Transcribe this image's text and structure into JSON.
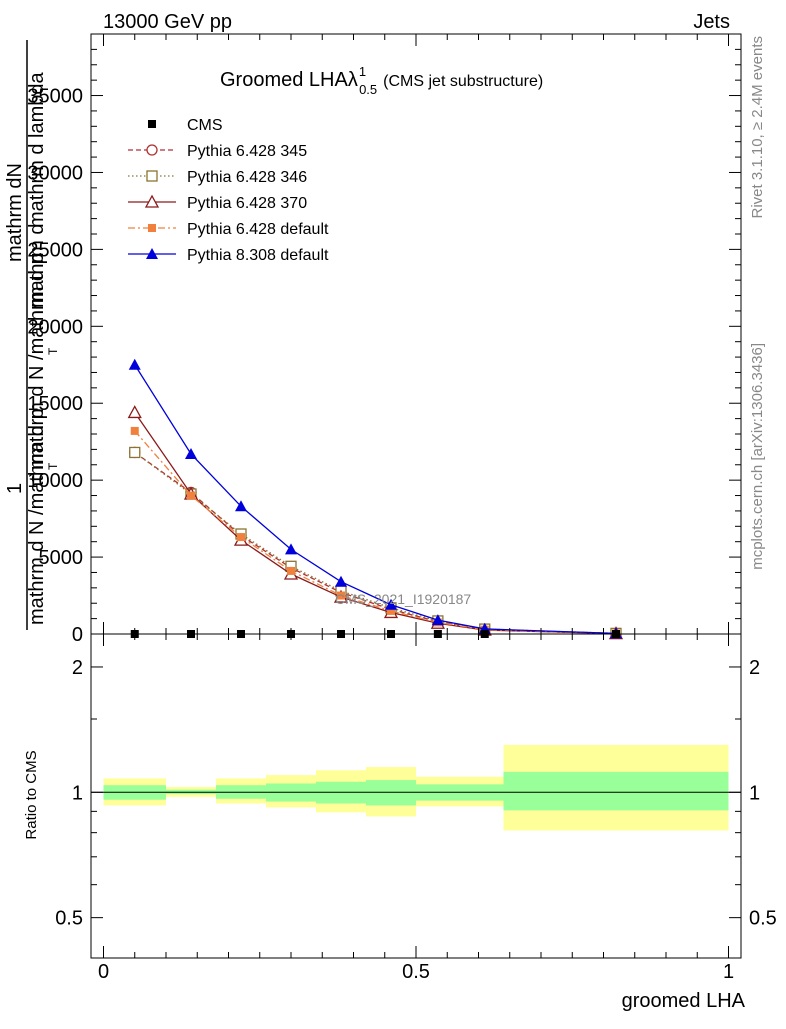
{
  "header": {
    "left": "13000 GeV pp",
    "right": "Jets"
  },
  "side": {
    "rivet": "Rivet 3.1.10, ≥ 2.4M events",
    "mcplots": "mcplots.cern.ch [arXiv:1306.3436]"
  },
  "chart_data": {
    "type": "line",
    "title": "Groomed LHAλ",
    "title_sup": "1",
    "title_sub": "0.5",
    "title_note": "(CMS jet substructure)",
    "analysis_label": "CMS_2021_I1920187",
    "main_panel": {
      "ylabel_parts": [
        "1",
        "mathrm d N /mathrm d p",
        "T",
        "mathrm d N /mathrm d p",
        "T",
        "mathrm dN",
        "mathrm d lambda",
        "mathrm d"
      ],
      "ylim": [
        0,
        39000
      ],
      "yticks": [
        0,
        5000,
        10000,
        15000,
        20000,
        25000,
        30000,
        35000
      ],
      "ytick_labels": [
        "0",
        "5000",
        "10000",
        "15000",
        "20000",
        "25000",
        "30000",
        "35000"
      ],
      "x": [
        0.05,
        0.14,
        0.22,
        0.3,
        0.38,
        0.46,
        0.535,
        0.61,
        0.82
      ],
      "series": [
        {
          "name": "CMS",
          "color": "#000000",
          "marker": "filled-square",
          "line": "none",
          "values": [
            0,
            0,
            0,
            0,
            0,
            0,
            0,
            0,
            0
          ]
        },
        {
          "name": "Pythia 6.428 345",
          "color": "#b03030",
          "marker": "open-circle",
          "line": "dashed",
          "values": [
            11800,
            9200,
            6400,
            4300,
            2700,
            1600,
            800,
            300,
            40
          ]
        },
        {
          "name": "Pythia 6.428 346",
          "color": "#8b7333",
          "marker": "open-square",
          "line": "dotted",
          "values": [
            11800,
            9100,
            6500,
            4400,
            2800,
            1700,
            850,
            320,
            40
          ]
        },
        {
          "name": "Pythia 6.428 370",
          "color": "#8b1a1a",
          "marker": "open-triangle",
          "line": "solid",
          "values": [
            14400,
            9100,
            6100,
            3900,
            2400,
            1400,
            700,
            250,
            30
          ]
        },
        {
          "name": "Pythia 6.428 default",
          "color": "#f0803c",
          "marker": "filled-square",
          "line": "dashdot",
          "values": [
            13200,
            9000,
            6300,
            4100,
            2500,
            1500,
            750,
            280,
            35
          ]
        },
        {
          "name": "Pythia 8.308 default",
          "color": "#0000dd",
          "marker": "filled-triangle",
          "line": "solid",
          "values": [
            17500,
            11700,
            8300,
            5500,
            3400,
            1900,
            900,
            330,
            40
          ]
        }
      ]
    },
    "ratio_panel": {
      "ylabel": "Ratio to CMS",
      "scale": "log",
      "ylim": [
        0.4,
        2.4
      ],
      "yticks": [
        0.5,
        1,
        2
      ],
      "ytick_labels": [
        "0.5",
        "1",
        "2"
      ],
      "band_colors": {
        "inner": "#99ff99",
        "outer": "#ffff99"
      },
      "bins": [
        {
          "lo": 0.0,
          "hi": 0.1,
          "g_lo": 0.96,
          "g_hi": 1.04,
          "y_lo": 0.93,
          "y_hi": 1.08
        },
        {
          "lo": 0.1,
          "hi": 0.18,
          "g_lo": 0.99,
          "g_hi": 1.015,
          "y_lo": 0.975,
          "y_hi": 1.03
        },
        {
          "lo": 0.18,
          "hi": 0.26,
          "g_lo": 0.965,
          "g_hi": 1.04,
          "y_lo": 0.94,
          "y_hi": 1.08
        },
        {
          "lo": 0.26,
          "hi": 0.34,
          "g_lo": 0.95,
          "g_hi": 1.05,
          "y_lo": 0.92,
          "y_hi": 1.1
        },
        {
          "lo": 0.34,
          "hi": 0.42,
          "g_lo": 0.94,
          "g_hi": 1.06,
          "y_lo": 0.895,
          "y_hi": 1.13
        },
        {
          "lo": 0.42,
          "hi": 0.5,
          "g_lo": 0.93,
          "g_hi": 1.07,
          "y_lo": 0.875,
          "y_hi": 1.15
        },
        {
          "lo": 0.5,
          "hi": 0.58,
          "g_lo": 0.955,
          "g_hi": 1.045,
          "y_lo": 0.925,
          "y_hi": 1.09
        },
        {
          "lo": 0.58,
          "hi": 0.64,
          "g_lo": 0.955,
          "g_hi": 1.045,
          "y_lo": 0.925,
          "y_hi": 1.09
        },
        {
          "lo": 0.64,
          "hi": 1.0,
          "g_lo": 0.905,
          "g_hi": 1.12,
          "y_lo": 0.81,
          "y_hi": 1.3
        }
      ]
    },
    "xaxis": {
      "xlabel": "groomed LHA",
      "xlim": [
        -0.02,
        1.02
      ],
      "xticks": [
        0,
        0.5,
        1
      ],
      "xtick_labels": [
        "0",
        "0.5",
        "1"
      ]
    },
    "legend_placement": "top-left"
  }
}
